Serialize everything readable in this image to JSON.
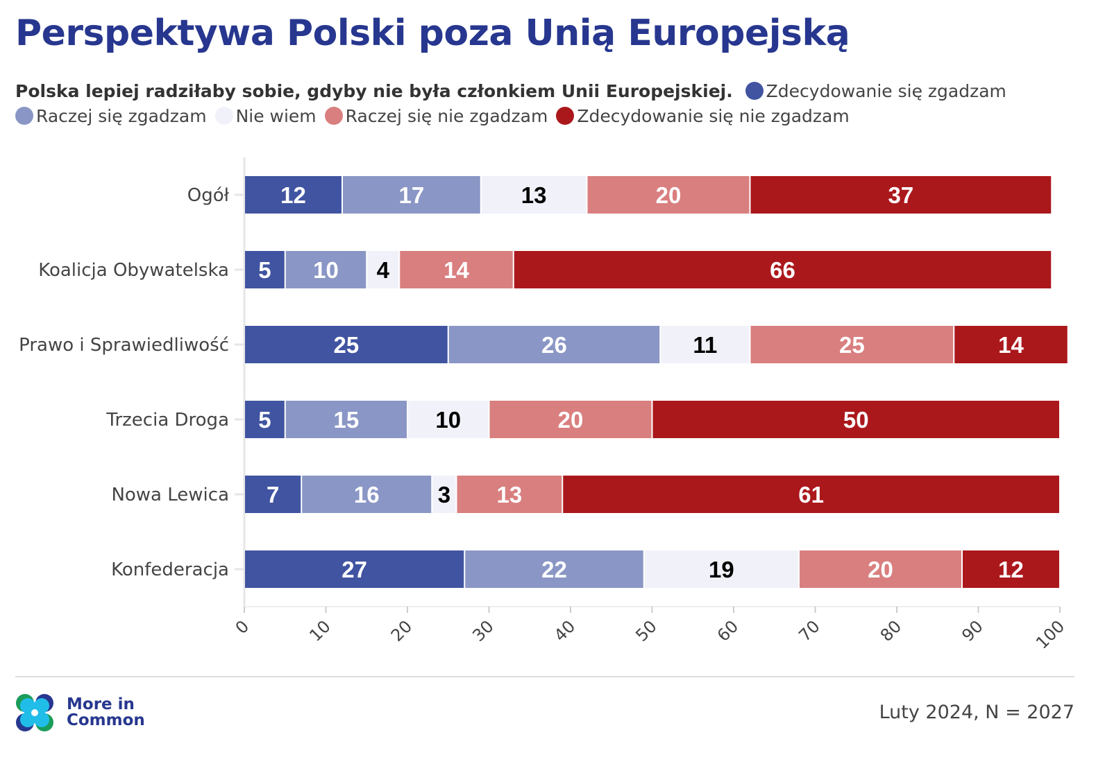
{
  "title": "Perspektywa Polski poza Unią Europejską",
  "question": "Polska lepiej radziłaby sobie, gdyby nie była członkiem Unii Europejskiej.",
  "note": "Luty 2024, N = 2027",
  "logo": {
    "line1": "More in",
    "line2": "Common"
  },
  "chart_data": {
    "type": "bar",
    "orientation": "horizontal",
    "stacked": true,
    "categories": [
      "Ogół",
      "Koalicja Obywatelska",
      "Prawo i Sprawiedliwość",
      "Trzecia Droga",
      "Nowa Lewica",
      "Konfederacja"
    ],
    "series": [
      {
        "name": "Zdecydowanie się zgadzam",
        "color": "#4154a1",
        "label_color": "#ffffff",
        "values": [
          12,
          5,
          25,
          5,
          7,
          27
        ]
      },
      {
        "name": "Raczej się zgadzam",
        "color": "#8a96c5",
        "label_color": "#ffffff",
        "values": [
          17,
          10,
          26,
          15,
          16,
          22
        ]
      },
      {
        "name": "Nie wiem",
        "color": "#f1f2f9",
        "label_color": "#000000",
        "values": [
          13,
          4,
          11,
          10,
          3,
          19
        ]
      },
      {
        "name": "Raczej się nie zgadzam",
        "color": "#d97f7f",
        "label_color": "#ffffff",
        "values": [
          20,
          14,
          25,
          20,
          13,
          20
        ]
      },
      {
        "name": "Zdecydowanie się nie zgadzam",
        "color": "#ab181c",
        "label_color": "#ffffff",
        "values": [
          37,
          66,
          14,
          50,
          61,
          12
        ]
      }
    ],
    "xlim": [
      0,
      100
    ],
    "xticks": [
      0,
      10,
      20,
      30,
      40,
      50,
      60,
      70,
      80,
      90,
      100
    ],
    "legend_position": "top",
    "grid": false
  }
}
